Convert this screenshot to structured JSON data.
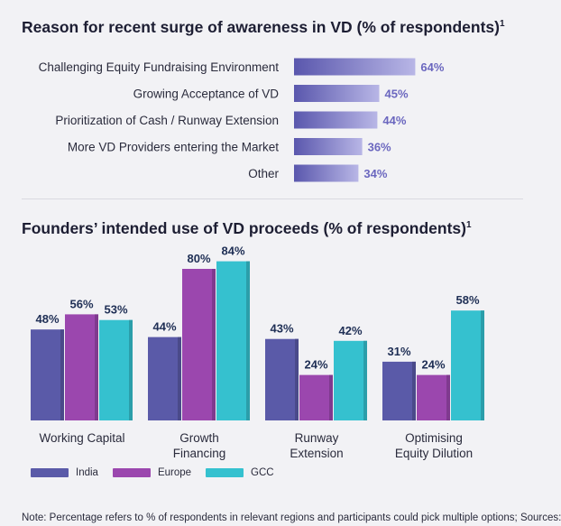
{
  "colors": {
    "hbar_left": "#5a57ad",
    "hbar_right": "#b8b6e6",
    "hbar_label": "#6b67bf",
    "india": "#5a5aa8",
    "europe": "#9b47ae",
    "gcc": "#35c1cf",
    "value_label": "#1f2f55"
  },
  "chart_data": [
    {
      "type": "bar",
      "orientation": "horizontal",
      "title": "Reason for recent surge of awareness in VD (% of respondents)",
      "title_footnote": "1",
      "categories": [
        "Challenging Equity Fundraising Environment",
        "Growing Acceptance of VD",
        "Prioritization of Cash / Runway Extension",
        "More VD Providers entering the Market",
        "Other"
      ],
      "values": [
        64,
        45,
        44,
        36,
        34
      ],
      "value_labels": [
        "64%",
        "45%",
        "44%",
        "36%",
        "34%"
      ],
      "xlim": [
        0,
        100
      ]
    },
    {
      "type": "bar",
      "orientation": "vertical",
      "title": "Founders’ intended use of VD proceeds (% of respondents)",
      "title_footnote": "1",
      "categories": [
        [
          "Working Capital"
        ],
        [
          "Growth",
          "Financing"
        ],
        [
          "Runway",
          "Extension"
        ],
        [
          "Optimising",
          "Equity Dilution"
        ]
      ],
      "series": [
        {
          "name": "India",
          "values": [
            48,
            44,
            43,
            31
          ],
          "labels": [
            "48%",
            "44%",
            "43%",
            "31%"
          ]
        },
        {
          "name": "Europe",
          "values": [
            56,
            80,
            24,
            24
          ],
          "labels": [
            "56%",
            "80%",
            "24%",
            "24%"
          ]
        },
        {
          "name": "GCC",
          "values": [
            53,
            84,
            42,
            58
          ],
          "labels": [
            "53%",
            "84%",
            "42%",
            "58%"
          ]
        }
      ],
      "ylim": [
        0,
        100
      ],
      "legend_position": "bottom-left"
    }
  ],
  "note": "Note: Percentage refers to % of respondents in relevant regions and participants could pick multiple options; Sources:"
}
